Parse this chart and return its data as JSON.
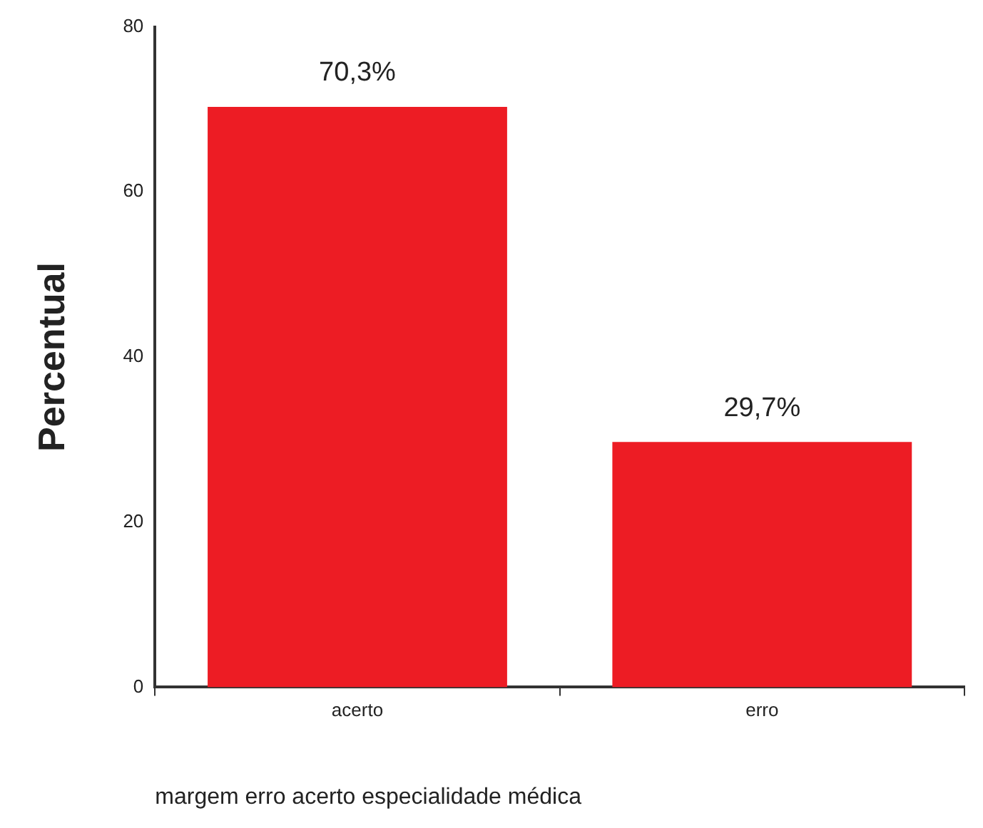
{
  "chart_data": {
    "type": "bar",
    "xlabel": "margem erro acerto especialidade médica",
    "ylabel": "Percentual",
    "categories": [
      "acerto",
      "erro"
    ],
    "values": [
      70.3,
      29.7
    ],
    "color": "#ed1c24",
    "value_labels": [
      "70,3%",
      "29,7%"
    ],
    "ylim": [
      0,
      80
    ],
    "yticks": [
      0,
      20,
      40,
      60,
      80
    ],
    "grid": false,
    "legend": false
  }
}
